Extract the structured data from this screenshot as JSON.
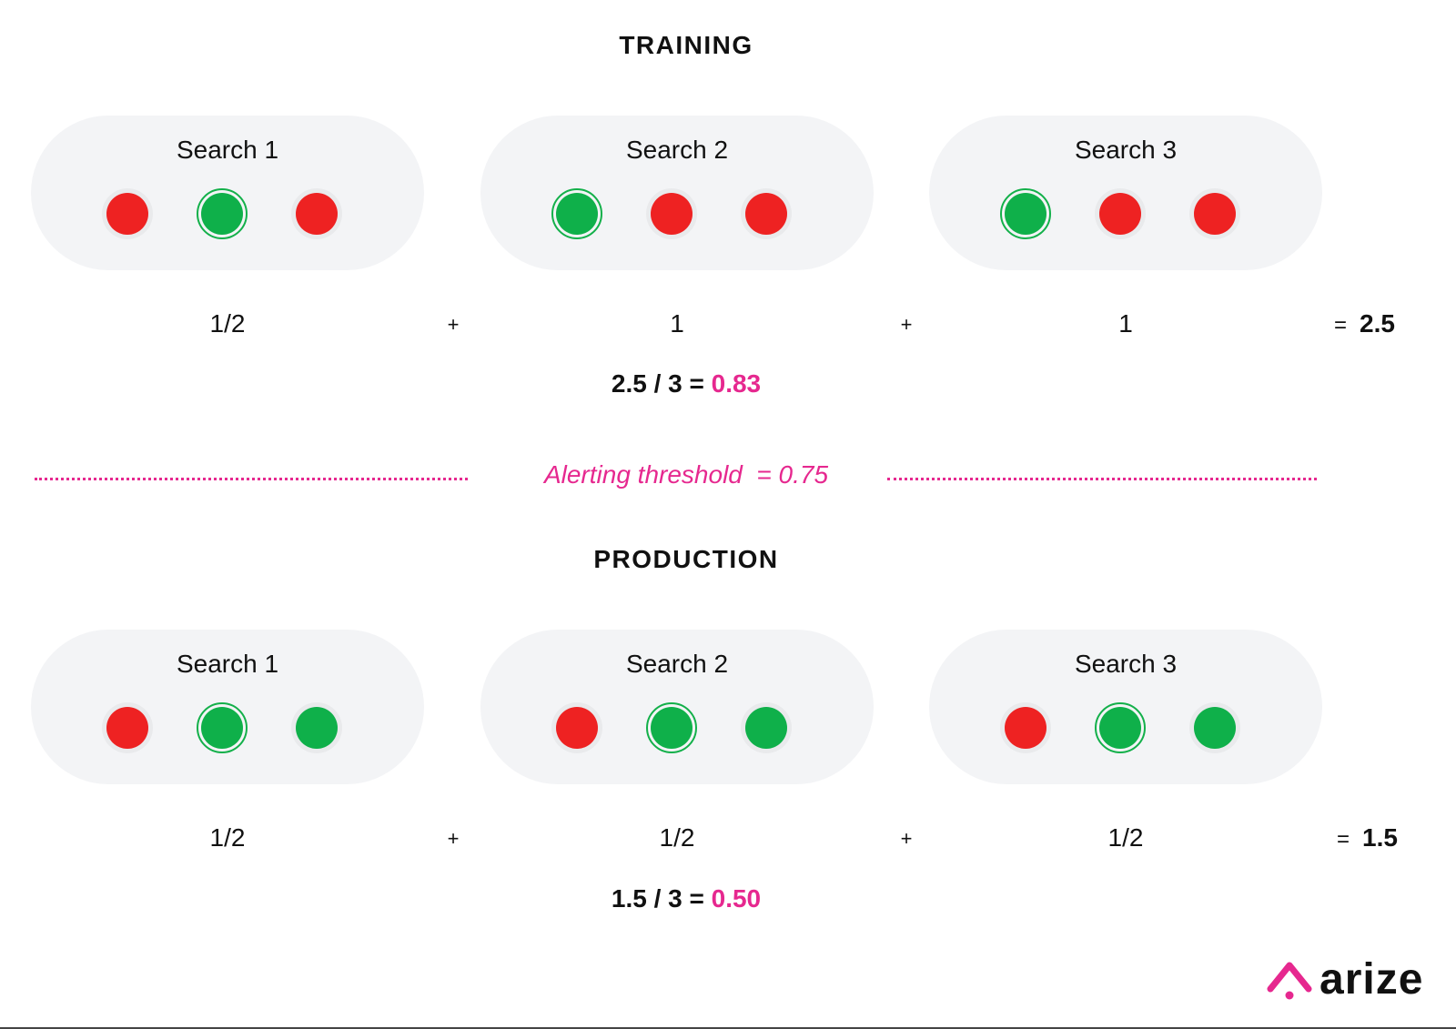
{
  "training": {
    "title": "TRAINING",
    "searches": [
      {
        "label": "Search 1",
        "dots": [
          "red",
          "green",
          "red"
        ],
        "selected": 1
      },
      {
        "label": "Search 2",
        "dots": [
          "green",
          "red",
          "red"
        ],
        "selected": 0
      },
      {
        "label": "Search 3",
        "dots": [
          "green",
          "red",
          "red"
        ],
        "selected": 0
      }
    ],
    "scores": [
      "1/2",
      "1",
      "1"
    ],
    "plus": "+",
    "equals": "=",
    "total": "2.5",
    "formula_prefix": "2.5 / 3 = ",
    "formula_result": "0.83"
  },
  "threshold": {
    "label": "Alerting threshold  = 0.75"
  },
  "production": {
    "title": "PRODUCTION",
    "searches": [
      {
        "label": "Search 1",
        "dots": [
          "red",
          "green",
          "green"
        ],
        "selected": 1
      },
      {
        "label": "Search 2",
        "dots": [
          "red",
          "green",
          "green"
        ],
        "selected": 1
      },
      {
        "label": "Search 3",
        "dots": [
          "red",
          "green",
          "green"
        ],
        "selected": 1
      }
    ],
    "scores": [
      "1/2",
      "1/2",
      "1/2"
    ],
    "plus": "+",
    "equals": "=",
    "total": "1.5",
    "formula_prefix": "1.5 / 3 = ",
    "formula_result": "0.50"
  },
  "logo": {
    "text": "arize",
    "icon": "arize-logo-icon"
  },
  "colors": {
    "red": "#ee2222",
    "green": "#0fb04a",
    "accent": "#e6288f",
    "pill": "#f3f4f6"
  }
}
